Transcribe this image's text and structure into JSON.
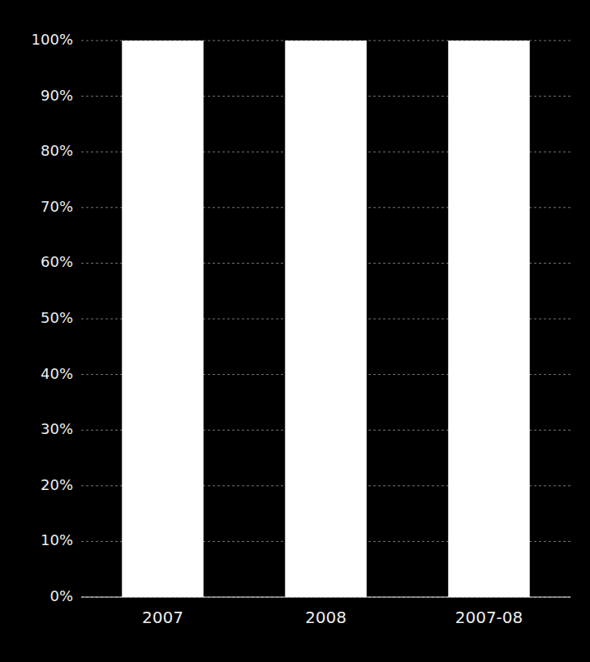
{
  "chart_data": {
    "type": "bar",
    "categories": [
      "2007",
      "2008",
      "2007-08"
    ],
    "values": [
      100,
      100,
      100
    ],
    "color": "#ffffff",
    "ylim": [
      0,
      100
    ],
    "yticks": [
      {
        "value": 0,
        "label": "0%"
      },
      {
        "value": 10,
        "label": "10%"
      },
      {
        "value": 20,
        "label": "20%"
      },
      {
        "value": 30,
        "label": "30%"
      },
      {
        "value": 40,
        "label": "40%"
      },
      {
        "value": 50,
        "label": "50%"
      },
      {
        "value": 60,
        "label": "60%"
      },
      {
        "value": 70,
        "label": "70%"
      },
      {
        "value": 80,
        "label": "80%"
      },
      {
        "value": 90,
        "label": "90%"
      },
      {
        "value": 100,
        "label": "100%"
      }
    ],
    "grid": true
  }
}
